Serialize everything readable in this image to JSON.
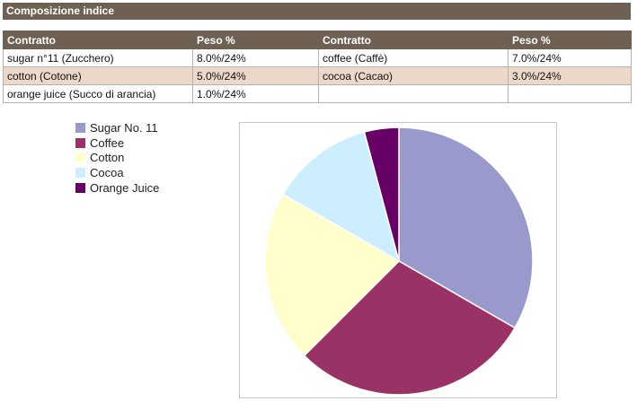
{
  "section": {
    "title": "Composizione indice"
  },
  "table": {
    "headers": [
      "Contratto",
      "Peso %",
      "Contratto",
      "Peso %"
    ],
    "rows": [
      {
        "c1": "sugar n°11 (Zucchero)",
        "w1": "8.0%/24%",
        "c2": "coffee (Caffè)",
        "w2": "7.0%/24%"
      },
      {
        "c1": "cotton (Cotone)",
        "w1": "5.0%/24%",
        "c2": "cocoa (Cacao)",
        "w2": "3.0%/24%"
      },
      {
        "c1": "orange juice (Succo di arancia)",
        "w1": "1.0%/24%",
        "c2": "",
        "w2": ""
      }
    ]
  },
  "chart_data": {
    "type": "pie",
    "categories": [
      "Sugar No. 11",
      "Coffee",
      "Cotton",
      "Cocoa",
      "Orange Juice"
    ],
    "values": [
      8.0,
      7.0,
      5.0,
      3.0,
      1.0
    ],
    "colors": [
      "#9999cc",
      "#993366",
      "#ffffcc",
      "#cceeff",
      "#660066"
    ],
    "legend_position": "top-left",
    "start": "12 o'clock, clockwise"
  }
}
